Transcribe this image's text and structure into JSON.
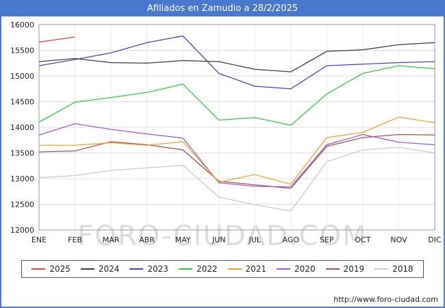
{
  "title": "Afiliados en Zamudio a 28/2/2025",
  "watermark": "FORO-CIUDAD.COM",
  "footer": {
    "url": "http://www.foro-ciudad.com"
  },
  "colors": {
    "accent_blue": "#4878cd",
    "grid": "#dcdcdc",
    "vgrid": "#ebebeb",
    "axis": "#9a9a9a",
    "text": "#222222"
  },
  "chart_data": {
    "type": "line",
    "title": "Afiliados en Zamudio a 28/2/2025",
    "categories": [
      "ENE",
      "FEB",
      "MAR",
      "ABR",
      "MAY",
      "JUN",
      "JUL",
      "AGO",
      "SEP",
      "OCT",
      "NOV",
      "DIC"
    ],
    "ylim": [
      12000,
      16000
    ],
    "ytick_step": 500,
    "grid": true,
    "legend_position": "bottom",
    "series": [
      {
        "name": "2025",
        "color": "#e8403a",
        "values": [
          15660,
          15760
        ]
      },
      {
        "name": "2024",
        "color": "#3d3d3d",
        "values": [
          15280,
          15340,
          15260,
          15250,
          15300,
          15280,
          15130,
          15080,
          15480,
          15510,
          15610,
          15650
        ]
      },
      {
        "name": "2023",
        "color": "#4343d0",
        "values": [
          15200,
          15320,
          15450,
          15650,
          15780,
          15050,
          14800,
          14750,
          15200,
          15230,
          15260,
          15280
        ]
      },
      {
        "name": "2022",
        "color": "#35cc3f",
        "values": [
          14100,
          14490,
          14580,
          14680,
          14840,
          14140,
          14190,
          14040,
          14650,
          15050,
          15200,
          15140
        ]
      },
      {
        "name": "2021",
        "color": "#eda62b",
        "values": [
          13650,
          13650,
          13700,
          13650,
          13720,
          12930,
          13080,
          12890,
          13800,
          13900,
          14200,
          14090
        ]
      },
      {
        "name": "2020",
        "color": "#9c59d1",
        "values": [
          13850,
          14070,
          13960,
          13870,
          13790,
          12920,
          12850,
          12840,
          13660,
          13860,
          13710,
          13660
        ]
      },
      {
        "name": "2019",
        "color": "#a8524a",
        "values": [
          13520,
          13540,
          13720,
          13660,
          13560,
          12950,
          12880,
          12810,
          13630,
          13800,
          13860,
          13850
        ]
      },
      {
        "name": "2018",
        "color": "#c9c9c9",
        "values": [
          13020,
          13060,
          13160,
          13210,
          13260,
          12640,
          12490,
          12370,
          13330,
          13560,
          13610,
          13500
        ]
      }
    ]
  }
}
